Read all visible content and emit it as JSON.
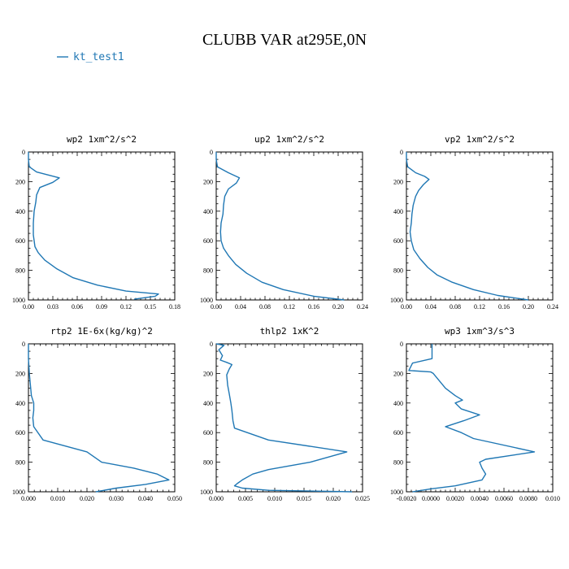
{
  "figure": {
    "title": "CLUBB VAR at295E,0N",
    "legend": {
      "label": "kt_test1",
      "color": "#1f77b4"
    }
  },
  "chart_data": [
    {
      "type": "line",
      "title": "wp2   1xm^2/s^2",
      "series": [
        {
          "color": "#1f77b4",
          "points": [
            [
              0,
              0
            ],
            [
              0,
              50
            ],
            [
              0.001,
              100
            ],
            [
              0.01,
              135
            ],
            [
              0.038,
              175
            ],
            [
              0.03,
              205
            ],
            [
              0.014,
              240
            ],
            [
              0.01,
              290
            ],
            [
              0.009,
              340
            ],
            [
              0.007,
              400
            ],
            [
              0.006,
              480
            ],
            [
              0.006,
              560
            ],
            [
              0.008,
              640
            ],
            [
              0.012,
              680
            ],
            [
              0.02,
              730
            ],
            [
              0.035,
              790
            ],
            [
              0.055,
              850
            ],
            [
              0.085,
              900
            ],
            [
              0.12,
              940
            ],
            [
              0.16,
              960
            ],
            [
              0.156,
              975
            ],
            [
              0.13,
              995
            ]
          ]
        }
      ],
      "xlim": [
        0,
        0.18
      ],
      "xticks": [
        "0.00",
        "0.03",
        "0.06",
        "0.09",
        "0.12",
        "0.15",
        "0.18"
      ],
      "ylim": [
        0,
        1000
      ],
      "yticks": [
        "0",
        "200",
        "400",
        "600",
        "800",
        "1000"
      ]
    },
    {
      "type": "line",
      "title": "up2   1xm^2/s^2",
      "series": [
        {
          "color": "#1f77b4",
          "points": [
            [
              0,
              0
            ],
            [
              0,
              50
            ],
            [
              0.002,
              100
            ],
            [
              0.02,
              140
            ],
            [
              0.038,
              175
            ],
            [
              0.033,
              210
            ],
            [
              0.02,
              250
            ],
            [
              0.014,
              300
            ],
            [
              0.012,
              360
            ],
            [
              0.011,
              420
            ],
            [
              0.008,
              480
            ],
            [
              0.007,
              540
            ],
            [
              0.008,
              600
            ],
            [
              0.012,
              650
            ],
            [
              0.02,
              700
            ],
            [
              0.032,
              760
            ],
            [
              0.05,
              820
            ],
            [
              0.075,
              880
            ],
            [
              0.11,
              930
            ],
            [
              0.16,
              975
            ],
            [
              0.21,
              1000
            ]
          ]
        }
      ],
      "xlim": [
        0,
        0.24
      ],
      "xticks": [
        "0.00",
        "0.04",
        "0.08",
        "0.12",
        "0.16",
        "0.20",
        "0.24"
      ],
      "ylim": [
        0,
        1000
      ],
      "yticks": [
        "0",
        "200",
        "400",
        "600",
        "800",
        "1000"
      ]
    },
    {
      "type": "line",
      "title": "vp2   1xm^2/s^2",
      "series": [
        {
          "color": "#1f77b4",
          "points": [
            [
              0,
              0
            ],
            [
              0,
              50
            ],
            [
              0.002,
              100
            ],
            [
              0.015,
              140
            ],
            [
              0.03,
              165
            ],
            [
              0.037,
              185
            ],
            [
              0.028,
              220
            ],
            [
              0.02,
              260
            ],
            [
              0.015,
              300
            ],
            [
              0.011,
              360
            ],
            [
              0.009,
              420
            ],
            [
              0.008,
              480
            ],
            [
              0.006,
              540
            ],
            [
              0.008,
              600
            ],
            [
              0.012,
              660
            ],
            [
              0.022,
              720
            ],
            [
              0.035,
              780
            ],
            [
              0.05,
              830
            ],
            [
              0.075,
              880
            ],
            [
              0.11,
              930
            ],
            [
              0.15,
              970
            ],
            [
              0.2,
              1000
            ]
          ]
        }
      ],
      "xlim": [
        0,
        0.24
      ],
      "xticks": [
        "0.00",
        "0.04",
        "0.08",
        "0.12",
        "0.16",
        "0.20",
        "0.24"
      ],
      "ylim": [
        0,
        1000
      ],
      "yticks": [
        "0",
        "200",
        "400",
        "600",
        "800",
        "1000"
      ]
    },
    {
      "type": "line",
      "title": "rtp2   1E-6x(kg/kg)^2",
      "series": [
        {
          "color": "#1f77b4",
          "points": [
            [
              0,
              0
            ],
            [
              0,
              50
            ],
            [
              0,
              100
            ],
            [
              0.0003,
              200
            ],
            [
              0.001,
              350
            ],
            [
              0.0018,
              400
            ],
            [
              0.0018,
              450
            ],
            [
              0.0015,
              500
            ],
            [
              0.0018,
              560
            ],
            [
              0.005,
              650
            ],
            [
              0.02,
              730
            ],
            [
              0.025,
              800
            ],
            [
              0.036,
              840
            ],
            [
              0.044,
              880
            ],
            [
              0.048,
              920
            ],
            [
              0.04,
              950
            ],
            [
              0.03,
              975
            ],
            [
              0.023,
              1000
            ]
          ]
        }
      ],
      "xlim": [
        0,
        0.05
      ],
      "xticks": [
        "0.000",
        "0.010",
        "0.020",
        "0.030",
        "0.040",
        "0.050"
      ],
      "ylim": [
        0,
        1000
      ],
      "yticks": [
        "0",
        "200",
        "400",
        "600",
        "800",
        "1000"
      ]
    },
    {
      "type": "line",
      "title": "thlp2   1xK^2",
      "series": [
        {
          "color": "#1f77b4",
          "points": [
            [
              0,
              0
            ],
            [
              0.0015,
              10
            ],
            [
              0.0005,
              40
            ],
            [
              0.0012,
              80
            ],
            [
              0.0008,
              110
            ],
            [
              0.002,
              125
            ],
            [
              0.003,
              140
            ],
            [
              0.0025,
              170
            ],
            [
              0.002,
              210
            ],
            [
              0.0022,
              280
            ],
            [
              0.0025,
              340
            ],
            [
              0.0028,
              400
            ],
            [
              0.003,
              450
            ],
            [
              0.0032,
              520
            ],
            [
              0.0035,
              570
            ],
            [
              0.01,
              650
            ],
            [
              0.025,
              730
            ],
            [
              0.018,
              800
            ],
            [
              0.01,
              850
            ],
            [
              0.007,
              880
            ],
            [
              0.005,
              920
            ],
            [
              0.004,
              945
            ],
            [
              0.0035,
              960
            ],
            [
              0.005,
              975
            ],
            [
              0.01,
              990
            ],
            [
              0.026,
              1000
            ]
          ]
        }
      ],
      "xlim": [
        0,
        0.028
      ],
      "xticks": [
        "0.000",
        "0.005",
        "0.010",
        "0.015",
        "0.020",
        "0.025"
      ],
      "ylim": [
        0,
        1000
      ],
      "yticks": [
        "0",
        "200",
        "400",
        "600",
        "800",
        "1000"
      ]
    },
    {
      "type": "line",
      "title": "wp3   1xm^3/s^3",
      "series": [
        {
          "color": "#1f77b4",
          "points": [
            [
              0.0001,
              0
            ],
            [
              0.0001,
              100
            ],
            [
              -0.0015,
              130
            ],
            [
              -0.0018,
              180
            ],
            [
              0.0,
              190
            ],
            [
              0.0002,
              200
            ],
            [
              0.0012,
              300
            ],
            [
              0.002,
              350
            ],
            [
              0.0026,
              380
            ],
            [
              0.002,
              400
            ],
            [
              0.0025,
              440
            ],
            [
              0.004,
              480
            ],
            [
              0.0027,
              520
            ],
            [
              0.0012,
              560
            ],
            [
              0.0025,
              600
            ],
            [
              0.0035,
              640
            ],
            [
              0.0085,
              730
            ],
            [
              0.0045,
              780
            ],
            [
              0.004,
              800
            ],
            [
              0.0042,
              840
            ],
            [
              0.0045,
              880
            ],
            [
              0.0042,
              920
            ],
            [
              0.002,
              960
            ],
            [
              0.0,
              980
            ],
            [
              -0.0015,
              1000
            ]
          ]
        }
      ],
      "xlim": [
        -0.002,
        0.01
      ],
      "xticks": [
        "-0.0020",
        "0.0000",
        "0.0020",
        "0.0040",
        "0.0060",
        "0.0080",
        "0.010"
      ],
      "ylim": [
        0,
        1000
      ],
      "yticks": [
        "0",
        "200",
        "400",
        "600",
        "800",
        "1000"
      ]
    }
  ]
}
